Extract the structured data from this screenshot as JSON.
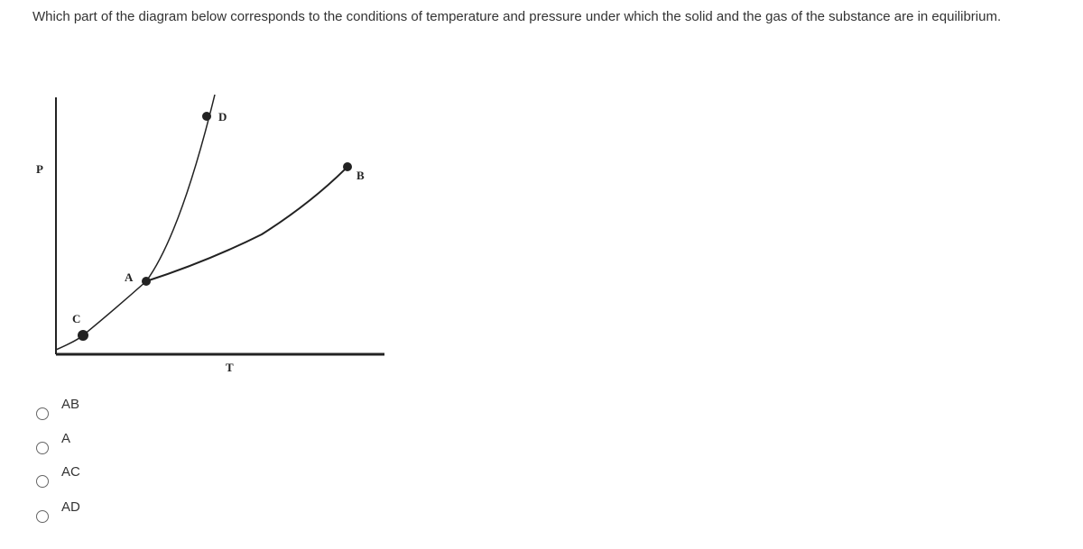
{
  "question": "Which part of the diagram below corresponds to the conditions of temperature and pressure under which the solid and the gas of the substance are in equilibrium.",
  "diagram": {
    "axis_y": "P",
    "axis_x": "T",
    "points": [
      "A",
      "B",
      "C",
      "D"
    ]
  },
  "options": [
    "AB",
    "A",
    "AC",
    "AD"
  ]
}
